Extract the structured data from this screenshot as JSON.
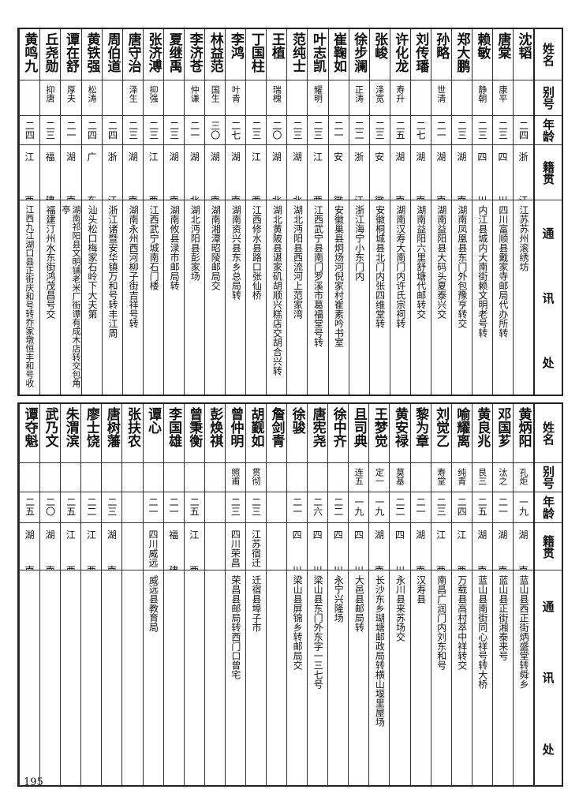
{
  "header": {
    "name": "姓名",
    "alias": "别号",
    "age": "年龄",
    "native": "籍贯",
    "address": [
      "通",
      "讯",
      "处"
    ]
  },
  "tables": [
    {
      "people": [
        {
          "name": "沈韬",
          "alias": "",
          "age": "二四",
          "native": "浙江",
          "address": "江苏苏州滚绣坊"
        },
        {
          "name": "唐棠",
          "alias": "康平",
          "age": "二三",
          "native": "四川",
          "address": "四川富顺县戴家寺邮局代办所转"
        },
        {
          "name": "赖敏",
          "alias": "静朝",
          "age": "二三",
          "native": "四川",
          "address": "内江县城内大南街赖文明老号转"
        },
        {
          "name": "郑大鹏",
          "alias": "",
          "age": "二三",
          "native": "湖南",
          "address": "湖南凤凰县东门外包豫亨转交"
        },
        {
          "name": "孙略",
          "alias": "世清",
          "age": "二一",
          "native": "湖南",
          "address": "湖南益阳县大码头夏泰兴交"
        },
        {
          "name": "刘传璠",
          "alias": "",
          "age": "二七",
          "native": "湖南",
          "address": "湖南益阳六里舒塘代邮转交"
        },
        {
          "name": "许化龙",
          "alias": "寿升",
          "age": "二五",
          "native": "湖南",
          "address": "湖南汉寿大南门内许氏宗祠转"
        },
        {
          "name": "张峻",
          "alias": "泽宽",
          "age": "二三",
          "native": "安徽",
          "address": "安徽桐城县北门内张四维堂转"
        },
        {
          "name": "徐步澜",
          "alias": "正涛",
          "age": "二二",
          "native": "浙江",
          "address": "浙江海宁小东门内"
        },
        {
          "name": "崔鞠如",
          "alias": "",
          "age": "二一",
          "native": "安徽",
          "address": "安徽巢县炯炀河倪家村崔素吟书室"
        },
        {
          "name": "叶志凯",
          "alias": "耀明",
          "age": "二三",
          "native": "江西",
          "address": "江西武宁县南门罗溪市葛福堂号转"
        },
        {
          "name": "范纯士",
          "alias": "",
          "age": "二三",
          "native": "湖北",
          "address": "湖北沔阳县西流河上范家湾"
        },
        {
          "name": "王植",
          "alias": "瑞槐",
          "age": "二〇",
          "native": "湖北",
          "address": "湖北黄陂县谌家矶胡顺兴糕店交胡合兴转"
        },
        {
          "name": "丁国柱",
          "alias": "",
          "age": "二三",
          "native": "江西",
          "address": "江西修水县路口张仙桥"
        },
        {
          "name": "李鸿",
          "alias": "叶青",
          "age": "二七",
          "native": "湖南",
          "address": "湖南资兴县东乡总局转"
        },
        {
          "name": "林益范",
          "alias": "国生",
          "age": "三〇",
          "native": "湖南",
          "address": "湖南湘潭昭陵邮局交"
        },
        {
          "name": "李济苍",
          "alias": "仲谦",
          "age": "二一",
          "native": "湖北",
          "address": "湖北沔阳县彭家场"
        },
        {
          "name": "夏继禹",
          "alias": "",
          "age": "二三",
          "native": "湖南",
          "address": "湖南攸县渌市邮局转"
        },
        {
          "name": "张济溥",
          "alias": "抑强",
          "age": "二三",
          "native": "江西",
          "address": "江西武宁城南石门楼"
        },
        {
          "name": "唐守治",
          "alias": "泽生",
          "age": "二三",
          "native": "湖南",
          "address": "湖南永州西河柳子街吉祥号转"
        },
        {
          "name": "周伯道",
          "alias": "",
          "age": "二四",
          "native": "浙江",
          "address": "浙江诸暨安华镇万和号转丰江周"
        },
        {
          "name": "黄铁强",
          "alias": "松涛",
          "age": "二四",
          "native": "广东",
          "address": "汕头松口梅家石岭下大夫第"
        },
        {
          "name": "谭在舒",
          "alias": "厚夫",
          "age": "二一",
          "native": "湖南",
          "address": "湖南祁阳县文明铺老米厂街谭有成木店转交包角亭"
        },
        {
          "name": "丘尧勋",
          "alias": "抑唐",
          "age": "二三",
          "native": "福建",
          "address": "福建汀州水东街鸿茂昌号交"
        },
        {
          "name": "黄鸣九",
          "alias": "",
          "age": "二四",
          "native": "江西",
          "address": "江西九江湖口县正街庆和号转乔家墩恒丰和号收"
        }
      ]
    },
    {
      "people": [
        {
          "name": "黄炳阳",
          "alias": "孔炬",
          "age": "一九",
          "native": "湖南",
          "address": "蓝山县西正街炳盛堂转舜乡"
        },
        {
          "name": "邓国芗",
          "alias": "汰之",
          "age": "二一",
          "native": "湖南",
          "address": "蓝山县正街湘泰来号"
        },
        {
          "name": "黄良兆",
          "alias": "艮三",
          "age": "二五",
          "native": "湖南",
          "address": "蓝山县南街同心祥号转大桥"
        },
        {
          "name": "喻耀离",
          "alias": "纯青",
          "age": "二四",
          "native": "江西",
          "address": "万载县高村萃中祥转交"
        },
        {
          "name": "刘觉乙",
          "alias": "寿堂",
          "age": "二三",
          "native": "江西",
          "address": "南昌广润门内刘东和号"
        },
        {
          "name": "黎为章",
          "alias": "",
          "age": "二一",
          "native": "湖南",
          "address": "汉寿县"
        },
        {
          "name": "黄安禄",
          "alias": "莫基",
          "age": "二二",
          "native": "四川",
          "address": "永川县来苏场交"
        },
        {
          "name": "王梦觉",
          "alias": "定一",
          "age": "一九",
          "native": "湖南",
          "address": "长沙东乡瑚塘邮政局转横山堰里屋场"
        },
        {
          "name": "且司典",
          "alias": "连五",
          "age": "一九",
          "native": "四川",
          "address": "大邑县邮局转"
        },
        {
          "name": "徐中齐",
          "alias": "",
          "age": "二二",
          "native": "四川",
          "address": "永宁兴隆场"
        },
        {
          "name": "唐宪尧",
          "alias": "",
          "age": "二六",
          "native": "四川",
          "address": "梁山县东门外东字一三七号"
        },
        {
          "name": "徐骏",
          "alias": "",
          "age": "二一",
          "native": "四川",
          "address": "梁山县屏锦乡转邮局交"
        },
        {
          "name": "詹剑青",
          "alias": "",
          "age": "",
          "native": "",
          "address": ""
        },
        {
          "name": "胡觐如",
          "alias": "贯彻",
          "age": "二三",
          "native": "江苏宿迁",
          "address": "迁宿县埠子市"
        },
        {
          "name": "曾仲明",
          "alias": "照甫",
          "age": "二三",
          "native": "四川荣昌",
          "address": "荣昌县邮局转西门口曾宅"
        },
        {
          "name": "彭焕祺",
          "alias": "",
          "age": "",
          "native": "",
          "address": ""
        },
        {
          "name": "曾秉衡",
          "alias": "",
          "age": "二五",
          "native": "江西",
          "address": ""
        },
        {
          "name": "李国雄",
          "alias": "",
          "age": "二一",
          "native": "福建",
          "address": ""
        },
        {
          "name": "谭心",
          "alias": "",
          "age": "二一",
          "native": "四川威远",
          "address": "威远县教育局"
        },
        {
          "name": "张扶农",
          "alias": "",
          "age": "",
          "native": "",
          "address": ""
        },
        {
          "name": "唐树藩",
          "alias": "",
          "age": "二三",
          "native": "湖南",
          "address": ""
        },
        {
          "name": "廖士饶",
          "alias": "",
          "age": "二二",
          "native": "江西",
          "address": ""
        },
        {
          "name": "朱渭滨",
          "alias": "",
          "age": "二五",
          "native": "江西",
          "address": ""
        },
        {
          "name": "武乃文",
          "alias": "",
          "age": "二〇",
          "native": "湖南",
          "address": ""
        },
        {
          "name": "谭夺魁",
          "alias": "",
          "age": "二五",
          "native": "湖南",
          "address": ""
        }
      ]
    }
  ],
  "page_number": "195"
}
